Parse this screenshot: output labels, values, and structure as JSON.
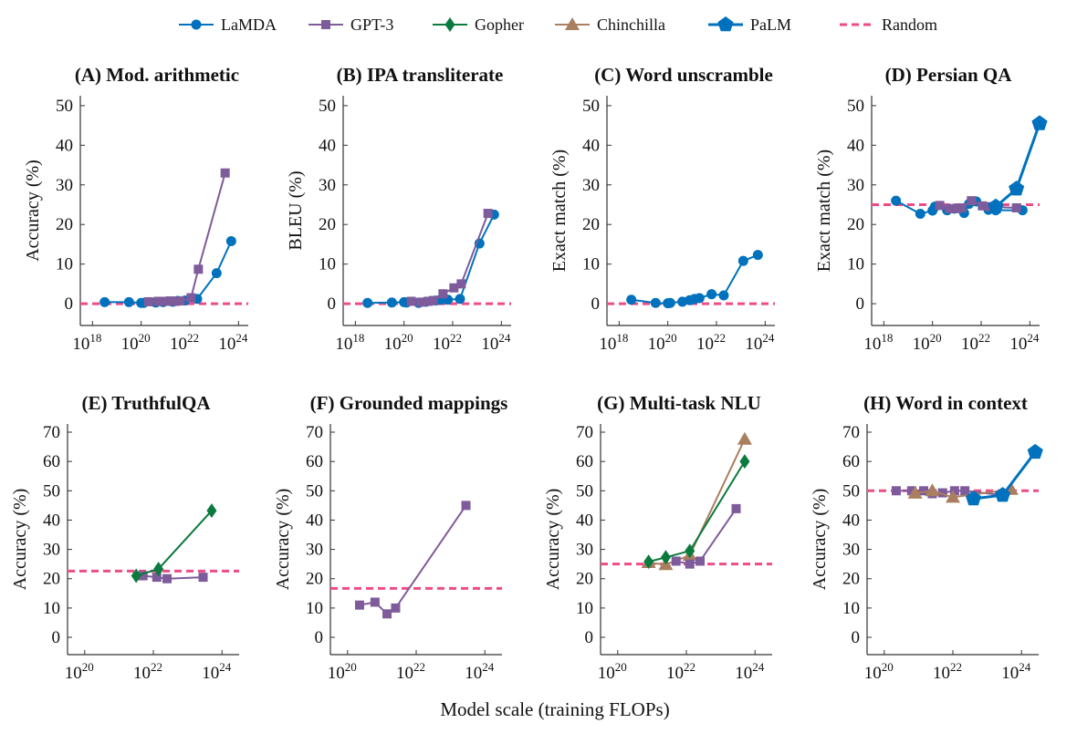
{
  "colors": {
    "LaMDA": "#0072BD",
    "GPT-3": "#7E5B9A",
    "Gopher": "#0B7A3E",
    "Chinchilla": "#A97F5F",
    "PaLM": "#0072BD",
    "Random": "#EE4B87"
  },
  "legend": [
    {
      "name": "LaMDA",
      "marker": "circle"
    },
    {
      "name": "GPT-3",
      "marker": "square"
    },
    {
      "name": "Gopher",
      "marker": "diamond"
    },
    {
      "name": "Chinchilla",
      "marker": "triangle"
    },
    {
      "name": "PaLM",
      "marker": "pentagon"
    },
    {
      "name": "Random",
      "marker": "dashed-line"
    }
  ],
  "xlabel": "Model scale (training FLOPs)",
  "chart_data": [
    {
      "type": "line",
      "title": "(A) Mod. arithmetic",
      "ylabel": "Accuracy (%)",
      "xscale": "log",
      "xticks_exp": [
        18,
        20,
        22,
        24
      ],
      "yticks": [
        0,
        10,
        20,
        30,
        40,
        50
      ],
      "xlim_exp": [
        17.5,
        24.4
      ],
      "ylim": [
        -5.5,
        52.5
      ],
      "random": 0,
      "series": [
        {
          "name": "LaMDA",
          "x_exp": [
            18.5,
            19.5,
            20,
            20.1,
            20.6,
            20.9,
            21.3,
            21.5,
            21.8,
            22.3,
            23.1,
            23.7
          ],
          "y": [
            0.4,
            0.4,
            0.2,
            0.2,
            0.3,
            0.4,
            0.5,
            0.7,
            0.8,
            1.2,
            7.7,
            15.8
          ]
        },
        {
          "name": "GPT-3",
          "x_exp": [
            20.3,
            20.7,
            21,
            21.2,
            21.4,
            21.6,
            22.05,
            22.35,
            23.45
          ],
          "y": [
            0.5,
            0.6,
            0.6,
            0.7,
            0.6,
            0.7,
            1.5,
            8.7,
            33
          ]
        }
      ]
    },
    {
      "type": "line",
      "title": "(B) IPA transliterate",
      "ylabel": "BLEU (%)",
      "xscale": "log",
      "xticks_exp": [
        18,
        20,
        22,
        24
      ],
      "yticks": [
        0,
        10,
        20,
        30,
        40,
        50
      ],
      "xlim_exp": [
        17.5,
        24.4
      ],
      "ylim": [
        -5.5,
        52.5
      ],
      "random": 0,
      "series": [
        {
          "name": "LaMDA",
          "x_exp": [
            18.5,
            19.5,
            20,
            20.1,
            20.6,
            20.9,
            21.3,
            21.5,
            21.8,
            22.3,
            23.1,
            23.7
          ],
          "y": [
            0.2,
            0.3,
            0.4,
            0.3,
            0.2,
            0.5,
            0.8,
            1,
            1,
            1.2,
            15.2,
            22.5
          ]
        },
        {
          "name": "GPT-3",
          "x_exp": [
            20.3,
            20.7,
            21,
            21.2,
            21.6,
            22.05,
            22.35,
            23.45
          ],
          "y": [
            0.6,
            0.4,
            0.6,
            0.8,
            2.5,
            4,
            5,
            22.8
          ]
        }
      ]
    },
    {
      "type": "line",
      "title": "(C) Word unscramble",
      "ylabel": "Exact match (%)",
      "xscale": "log",
      "xticks_exp": [
        18,
        20,
        22,
        24
      ],
      "yticks": [
        0,
        10,
        20,
        30,
        40,
        50
      ],
      "xlim_exp": [
        17.5,
        24.4
      ],
      "ylim": [
        -5.5,
        52.5
      ],
      "random": 0,
      "series": [
        {
          "name": "LaMDA",
          "x_exp": [
            18.5,
            19.5,
            20,
            20.1,
            20.6,
            20.9,
            21.1,
            21.3,
            21.8,
            22.3,
            23.1,
            23.7
          ],
          "y": [
            1,
            0.2,
            0.1,
            0.2,
            0.5,
            0.9,
            1.2,
            1.4,
            2.4,
            2.1,
            10.8,
            12.3
          ]
        }
      ]
    },
    {
      "type": "line",
      "title": "(D) Persian QA",
      "ylabel": "Exact match (%)",
      "xscale": "log",
      "xticks_exp": [
        18,
        20,
        22,
        24
      ],
      "yticks": [
        0,
        10,
        20,
        30,
        40,
        50
      ],
      "xlim_exp": [
        17.5,
        24.4
      ],
      "ylim": [
        -5.5,
        52.5
      ],
      "random": 25,
      "series": [
        {
          "name": "LaMDA",
          "x_exp": [
            18.5,
            19.5,
            20,
            20.1,
            20.6,
            20.9,
            21.3,
            21.5,
            21.8,
            22.3,
            22.6,
            23.7
          ],
          "y": [
            26,
            22.7,
            23.5,
            24.5,
            23.6,
            24,
            22.9,
            25.2,
            25.8,
            23.7,
            23.6,
            23.6
          ]
        },
        {
          "name": "GPT-3",
          "x_exp": [
            20.3,
            20.7,
            21,
            21.2,
            21.6,
            22.05,
            22.35,
            23.45
          ],
          "y": [
            24.8,
            24,
            24,
            24.2,
            26,
            24.7,
            24.5,
            24.2
          ]
        },
        {
          "name": "PaLM",
          "x_exp": [
            22.6,
            23.45,
            24.4
          ],
          "y": [
            24.5,
            29,
            45.5
          ]
        }
      ]
    },
    {
      "type": "line",
      "title": "(E) TruthfulQA",
      "ylabel": "Accuracy (%)",
      "xscale": "log",
      "xticks_exp": [
        20,
        22,
        24
      ],
      "yticks": [
        0,
        10,
        20,
        30,
        40,
        50,
        60,
        70
      ],
      "xlim_exp": [
        19.5,
        24.5
      ],
      "ylim": [
        -5.9,
        72.8
      ],
      "random": 22.6,
      "series": [
        {
          "name": "GPT-3",
          "x_exp": [
            21.7,
            22.1,
            22.4,
            23.45
          ],
          "y": [
            21,
            20.5,
            20,
            20.5
          ]
        },
        {
          "name": "Gopher",
          "x_exp": [
            21.5,
            22.15,
            23.7
          ],
          "y": [
            21,
            23.3,
            43.2
          ]
        }
      ]
    },
    {
      "type": "line",
      "title": "(F) Grounded mappings",
      "ylabel": "Accuracy (%)",
      "xscale": "log",
      "xticks_exp": [
        20,
        22,
        24
      ],
      "yticks": [
        0,
        10,
        20,
        30,
        40,
        50,
        60,
        70
      ],
      "xlim_exp": [
        19.5,
        24.5
      ],
      "ylim": [
        -5.9,
        72.8
      ],
      "random": 16.7,
      "series": [
        {
          "name": "GPT-3",
          "x_exp": [
            20.35,
            20.8,
            21.15,
            21.4,
            23.45
          ],
          "y": [
            11,
            12,
            8,
            10,
            45
          ]
        }
      ]
    },
    {
      "type": "line",
      "title": "(G) Multi-task NLU",
      "ylabel": "Accuracy (%)",
      "xscale": "log",
      "xticks_exp": [
        20,
        22,
        24
      ],
      "yticks": [
        0,
        10,
        20,
        30,
        40,
        50,
        60,
        70
      ],
      "xlim_exp": [
        19.5,
        24.5
      ],
      "ylim": [
        -5.9,
        72.8
      ],
      "random": 25,
      "series": [
        {
          "name": "Chinchilla",
          "x_exp": [
            20.9,
            21.4,
            22.1,
            23.7
          ],
          "y": [
            25.5,
            24.8,
            28,
            67.6
          ]
        },
        {
          "name": "GPT-3",
          "x_exp": [
            21.7,
            22.1,
            22.4,
            23.45
          ],
          "y": [
            26,
            25,
            26,
            43.9
          ]
        },
        {
          "name": "Gopher",
          "x_exp": [
            20.9,
            21.4,
            22.1,
            23.7
          ],
          "y": [
            25.8,
            27.3,
            29.5,
            60
          ]
        }
      ]
    },
    {
      "type": "line",
      "title": "(H) Word in context",
      "ylabel": "Accuracy (%)",
      "xscale": "log",
      "xticks_exp": [
        20,
        22,
        24
      ],
      "yticks": [
        0,
        10,
        20,
        30,
        40,
        50,
        60,
        70
      ],
      "xlim_exp": [
        19.5,
        24.5
      ],
      "ylim": [
        -5.9,
        72.8
      ],
      "random": 50,
      "series": [
        {
          "name": "GPT-3",
          "x_exp": [
            20.35,
            20.8,
            21.15,
            21.4,
            21.7,
            22.05,
            22.35,
            23.45
          ],
          "y": [
            50,
            50,
            50,
            49,
            49.3,
            50,
            50,
            48.5
          ]
        },
        {
          "name": "Chinchilla",
          "x_exp": [
            20.9,
            21.4,
            22,
            23.7
          ],
          "y": [
            49.2,
            50,
            47.8,
            50.5
          ]
        },
        {
          "name": "PaLM",
          "x_exp": [
            22.6,
            23.45,
            24.4
          ],
          "y": [
            47.3,
            48.5,
            63.2
          ]
        }
      ]
    }
  ]
}
